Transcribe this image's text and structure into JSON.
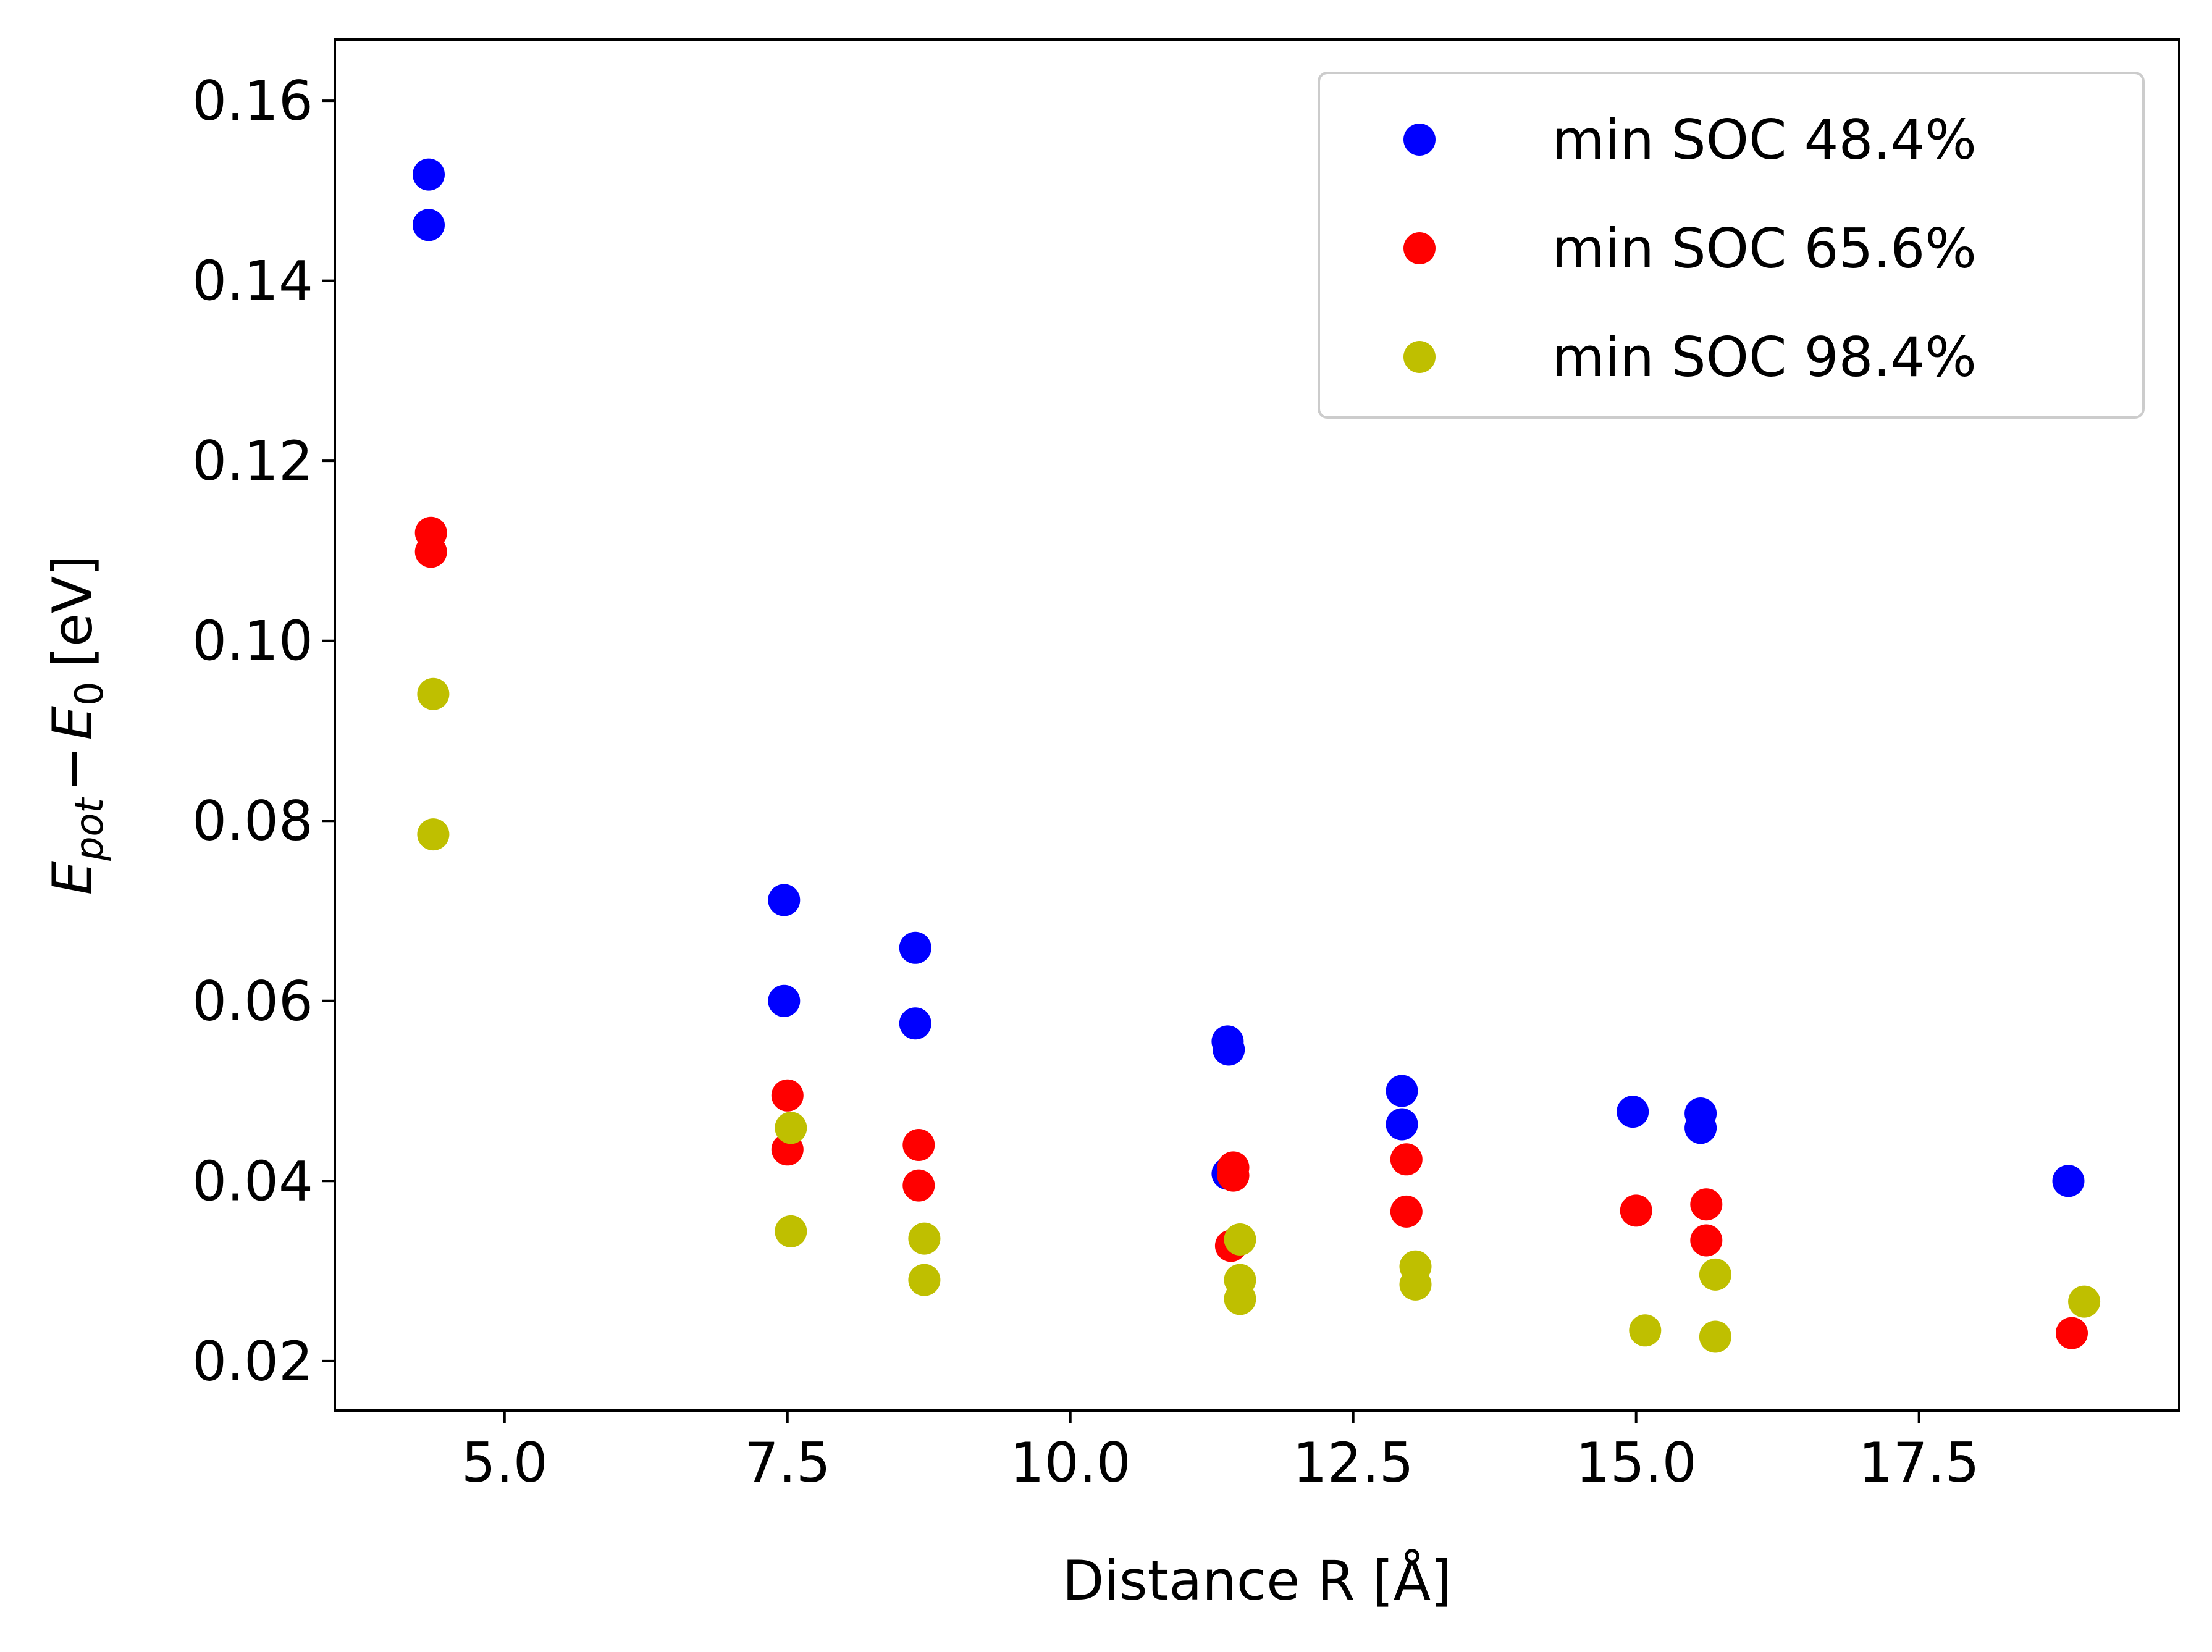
{
  "chart_data": {
    "type": "scatter",
    "xlabel": "Distance R [Å]",
    "ylabel": "E_pot − E_0 [eV]",
    "ylabel_parts": {
      "e1": "E",
      "sub1": "pot",
      "minus": "−",
      "e2": "E",
      "sub2": "0",
      "unit": "[eV]"
    },
    "xlim": [
      3.5,
      19.8
    ],
    "ylim": [
      0.0145,
      0.1668
    ],
    "x_ticks": [
      5.0,
      7.5,
      10.0,
      12.5,
      15.0,
      17.5
    ],
    "x_tick_labels": [
      "5.0",
      "7.5",
      "10.0",
      "12.5",
      "15.0",
      "17.5"
    ],
    "y_ticks": [
      0.02,
      0.04,
      0.06,
      0.08,
      0.1,
      0.12,
      0.14,
      0.16
    ],
    "y_tick_labels": [
      "0.02",
      "0.04",
      "0.06",
      "0.08",
      "0.10",
      "0.12",
      "0.14",
      "0.16"
    ],
    "legend_position": "top-right",
    "grid": false,
    "series": [
      {
        "name": "min SOC 48.4%",
        "color": "#0000ff",
        "x": [
          4.33,
          4.33,
          7.47,
          7.47,
          8.63,
          8.63,
          11.39,
          11.4,
          11.39,
          12.93,
          12.93,
          14.97,
          15.57,
          15.57,
          18.82
        ],
        "y": [
          0.1518,
          0.1462,
          0.0712,
          0.06,
          0.0659,
          0.0575,
          0.0555,
          0.0546,
          0.0408,
          0.05,
          0.0463,
          0.0477,
          0.0475,
          0.0459,
          0.04
        ]
      },
      {
        "name": "min SOC 65.6%",
        "color": "#ff0000",
        "x": [
          4.35,
          4.35,
          7.5,
          7.5,
          8.66,
          8.66,
          11.44,
          11.44,
          11.42,
          12.97,
          12.97,
          15.0,
          15.62,
          15.62,
          18.85
        ],
        "y": [
          0.112,
          0.1099,
          0.0495,
          0.0435,
          0.044,
          0.0395,
          0.0415,
          0.0406,
          0.0328,
          0.0424,
          0.0366,
          0.0367,
          0.0374,
          0.0334,
          0.0231
        ]
      },
      {
        "name": "min SOC 98.4%",
        "color": "#bfbf00",
        "x": [
          4.37,
          4.37,
          7.53,
          7.53,
          8.71,
          8.71,
          11.5,
          11.5,
          11.5,
          13.05,
          13.05,
          15.08,
          15.7,
          15.7,
          18.96
        ],
        "y": [
          0.0941,
          0.0785,
          0.0459,
          0.0344,
          0.0336,
          0.029,
          0.0335,
          0.029,
          0.0269,
          0.0305,
          0.0285,
          0.0234,
          0.0296,
          0.0227,
          0.0266
        ]
      }
    ]
  }
}
